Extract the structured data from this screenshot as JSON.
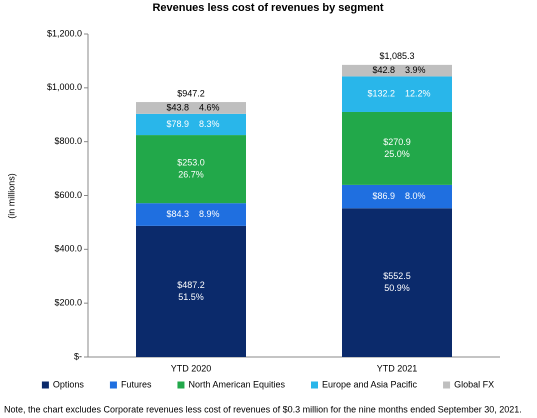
{
  "chart_data": {
    "type": "stacked_bar",
    "title": "Revenues less cost of revenues by segment",
    "y_label": "(in millions)",
    "note": "Note, the chart excludes Corporate revenues less cost of revenues of $0.3 million for the nine months ended September 30, 2021.",
    "categories": [
      "YTD 2020",
      "YTD 2021"
    ],
    "series": [
      {
        "name": "Options",
        "color": "#0b2a6b",
        "values": [
          487.2,
          552.5
        ],
        "value_labels": [
          "$487.2",
          "$552.5"
        ],
        "share_labels": [
          "51.5%",
          "50.9%"
        ]
      },
      {
        "name": "Futures",
        "color": "#1f6fe0",
        "values": [
          84.3,
          86.9
        ],
        "value_labels": [
          "$84.3",
          "$86.9"
        ],
        "share_labels": [
          "8.9%",
          "8.0%"
        ]
      },
      {
        "name": "North American Equities",
        "color": "#22a84a",
        "values": [
          253.0,
          270.9
        ],
        "value_labels": [
          "$253.0",
          "$270.9"
        ],
        "share_labels": [
          "26.7%",
          "25.0%"
        ]
      },
      {
        "name": "Europe and Asia Pacific",
        "color": "#29b6ea",
        "values": [
          78.9,
          132.2
        ],
        "value_labels": [
          "$78.9",
          "$132.2"
        ],
        "share_labels": [
          "8.3%",
          "12.2%"
        ]
      },
      {
        "name": "Global FX",
        "color": "#bfbfbf",
        "values": [
          43.8,
          42.8
        ],
        "value_labels": [
          "$43.8",
          "$42.8"
        ],
        "share_labels": [
          "4.6%",
          "3.9%"
        ]
      }
    ],
    "totals": [
      947.2,
      1085.3
    ],
    "total_labels": [
      "$947.2",
      "$1,085.3"
    ],
    "ylim": [
      0,
      1200
    ],
    "yticks": [
      {
        "value": 0,
        "label": "$-"
      },
      {
        "value": 200,
        "label": "$200.0"
      },
      {
        "value": 400,
        "label": "$400.0"
      },
      {
        "value": 600,
        "label": "$600.0"
      },
      {
        "value": 800,
        "label": "$800.0"
      },
      {
        "value": 1000,
        "label": "$1,000.0"
      },
      {
        "value": 1200,
        "label": "$1,200.0"
      }
    ],
    "grid": false,
    "legend": "bottom"
  }
}
